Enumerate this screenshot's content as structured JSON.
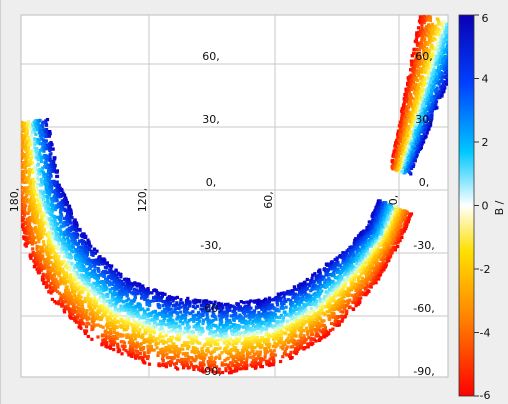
{
  "chart_data": {
    "type": "scatter",
    "title": "",
    "projection": "polar sky map",
    "lon_tick_labels": [
      "180,",
      "120,",
      "60,",
      "0,"
    ],
    "lat_tick_labels_center": [
      "60,",
      "30,",
      "0,",
      "-30,",
      "-60,",
      "-90,"
    ],
    "lat_tick_labels_right": [
      "60,",
      "30,",
      "0,",
      "-30,",
      "-60,",
      "-90,"
    ],
    "colorbar": {
      "label": "B /",
      "range": [
        -6,
        6
      ],
      "ticks": [
        "6",
        "4",
        "2",
        "0",
        "-2",
        "-4",
        "-6"
      ],
      "colors": [
        "#0a10ff",
        "#0060ff",
        "#00c8ff",
        "#ffffff",
        "#ffe000",
        "#ff8000",
        "#ff0000"
      ]
    },
    "grid": true
  }
}
